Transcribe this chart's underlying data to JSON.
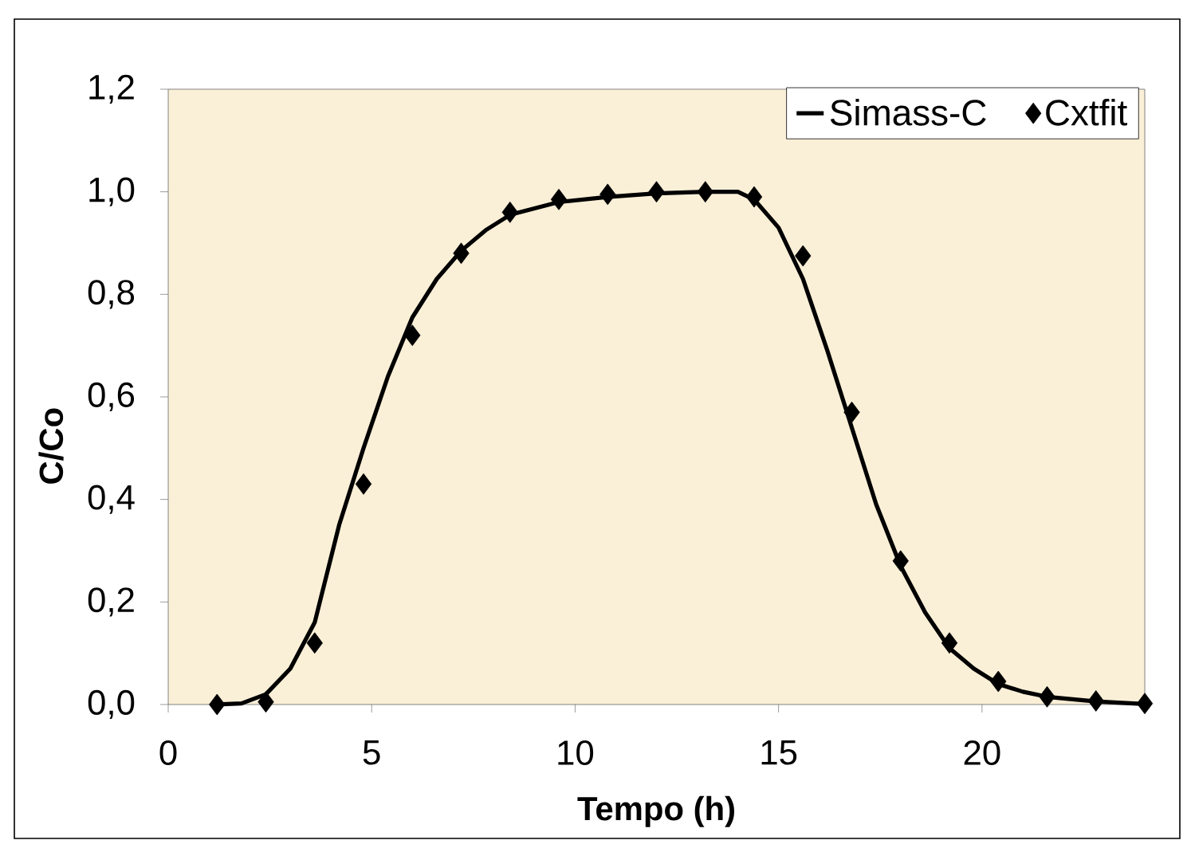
{
  "chart_data": {
    "type": "line",
    "xlabel": "Tempo (h)",
    "ylabel": "C/Co",
    "xlim": [
      0,
      24
    ],
    "ylim": [
      0,
      1.2
    ],
    "xticks": [
      0,
      5,
      10,
      15,
      20
    ],
    "yticks": [
      {
        "value": 0,
        "label": "0,0"
      },
      {
        "value": 0.2,
        "label": "0,2"
      },
      {
        "value": 0.4,
        "label": "0,4"
      },
      {
        "value": 0.6,
        "label": "0,6"
      },
      {
        "value": 0.8,
        "label": "0,8"
      },
      {
        "value": 1.0,
        "label": "1,0"
      },
      {
        "value": 1.2,
        "label": "1,2"
      }
    ],
    "legend": "top right",
    "grid": false,
    "series": [
      {
        "name": "Simass-C",
        "color": "#000000",
        "marker": "none",
        "line_style": "solid",
        "x": [
          1.2,
          1.8,
          2.4,
          3.0,
          3.6,
          4.2,
          4.8,
          5.4,
          6.0,
          6.6,
          7.2,
          7.8,
          8.4,
          9.6,
          10.8,
          12.0,
          13.2,
          14.0,
          14.4,
          15.0,
          15.6,
          16.2,
          16.8,
          17.4,
          18.0,
          18.6,
          19.2,
          19.8,
          20.4,
          21.0,
          21.6,
          22.8,
          24.0
        ],
        "values": [
          0,
          0.002,
          0.02,
          0.07,
          0.16,
          0.35,
          0.5,
          0.64,
          0.755,
          0.83,
          0.885,
          0.925,
          0.955,
          0.98,
          0.99,
          0.997,
          1.0,
          1.0,
          0.985,
          0.93,
          0.83,
          0.69,
          0.54,
          0.39,
          0.27,
          0.18,
          0.11,
          0.07,
          0.04,
          0.025,
          0.015,
          0.006,
          0.001
        ]
      },
      {
        "name": "Cxtfit",
        "type": "scatter",
        "color": "#000000",
        "marker": "diamond",
        "x": [
          1.2,
          2.4,
          3.6,
          4.8,
          6.0,
          7.2,
          8.4,
          9.6,
          10.8,
          12.0,
          13.2,
          14.4,
          15.6,
          16.8,
          18.0,
          19.2,
          20.4,
          21.6,
          22.8,
          24.0
        ],
        "values": [
          0,
          0.005,
          0.12,
          0.43,
          0.72,
          0.88,
          0.96,
          0.985,
          0.995,
          1.0,
          1.0,
          0.99,
          0.875,
          0.57,
          0.28,
          0.12,
          0.045,
          0.015,
          0.007,
          0.002
        ]
      }
    ]
  }
}
